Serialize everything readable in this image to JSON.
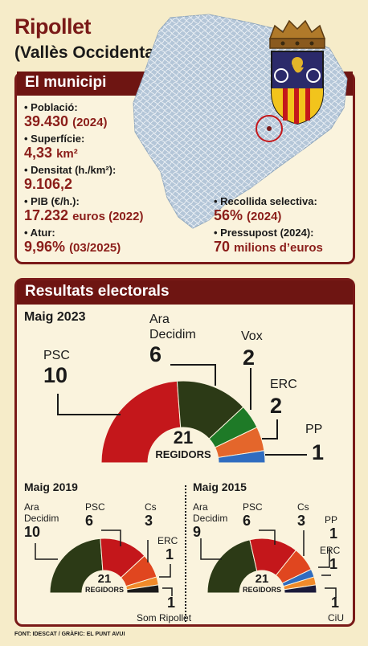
{
  "header": {
    "title": "Ripollet",
    "subtitle": "(Vallès Occidental)"
  },
  "municipi": {
    "heading": "El municipi",
    "stats": [
      {
        "label": "• Població:",
        "value": "39.430",
        "note": "(2024)"
      },
      {
        "label": "• Superfície:",
        "value": "4,33",
        "note": "km²"
      },
      {
        "label": "• Densitat (h./km²):",
        "value": "9.106,2",
        "note": ""
      },
      {
        "label": "• PIB (€/h.):",
        "value": "17.232",
        "note": "euros (2022)"
      },
      {
        "label": "• Atur:",
        "value": "9,96%",
        "note": "(03/2025)"
      }
    ],
    "stats_right": [
      {
        "label": "• Recollida selectiva:",
        "value": "56%",
        "note": "(2024)"
      },
      {
        "label": "• Pressupost (2024):",
        "value": "70",
        "note": "milions d’euros"
      }
    ]
  },
  "resultats": {
    "heading": "Resultats electorals",
    "regidors_label": "REGIDORS",
    "total": "21"
  },
  "chart_data": [
    {
      "type": "pie",
      "title": "Maig 2023",
      "categories": [
        "PSC",
        "Ara Decidim",
        "Vox",
        "ERC",
        "PP"
      ],
      "values": [
        10,
        6,
        2,
        2,
        1
      ],
      "colors": [
        "#c4171b",
        "#2c3a16",
        "#1e7a27",
        "#e4662b",
        "#2f6cc0"
      ]
    },
    {
      "type": "pie",
      "title": "Maig 2019",
      "categories": [
        "Ara Decidim",
        "PSC",
        "Cs",
        "ERC",
        "Som Ripollet"
      ],
      "values": [
        10,
        6,
        3,
        1,
        1
      ],
      "colors": [
        "#2c3a16",
        "#c4171b",
        "#e0461f",
        "#f08a2a",
        "#1a1a1a"
      ]
    },
    {
      "type": "pie",
      "title": "Maig 2015",
      "categories": [
        "Ara Decidim",
        "PSC",
        "Cs",
        "PP",
        "ERC",
        "CiU"
      ],
      "values": [
        9,
        6,
        3,
        1,
        1,
        1
      ],
      "colors": [
        "#2c3a16",
        "#c4171b",
        "#e0461f",
        "#2f6cc0",
        "#f08a2a",
        "#1a1a3a"
      ]
    }
  ],
  "footer": {
    "source": "FONT: IDESCAT / GRÀFIC: EL PUNT AVUI"
  }
}
